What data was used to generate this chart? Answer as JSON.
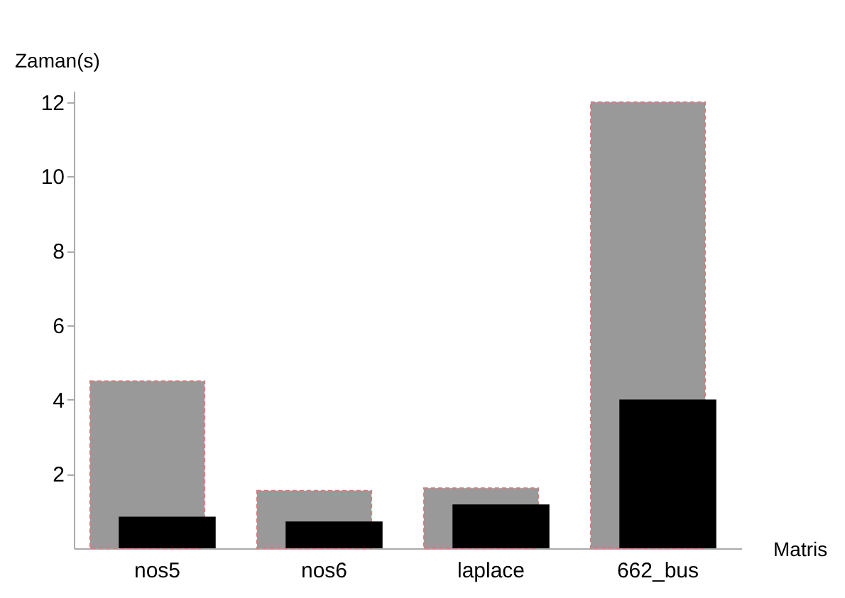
{
  "chart_data": {
    "type": "bar",
    "xlabel": "Matris",
    "ylabel": "Zaman(s)",
    "categories": [
      "nos5",
      "nos6",
      "laplace",
      "662_bus"
    ],
    "series": [
      {
        "color": "#999999",
        "values": [
          4.5,
          1.55,
          1.62,
          12.0
        ]
      },
      {
        "color": "#000000",
        "values": [
          0.85,
          0.72,
          1.18,
          4.0
        ]
      }
    ],
    "ylim": [
      0,
      12.3
    ],
    "yticks": [
      2,
      4,
      6,
      8,
      10,
      12
    ],
    "grid": false
  }
}
